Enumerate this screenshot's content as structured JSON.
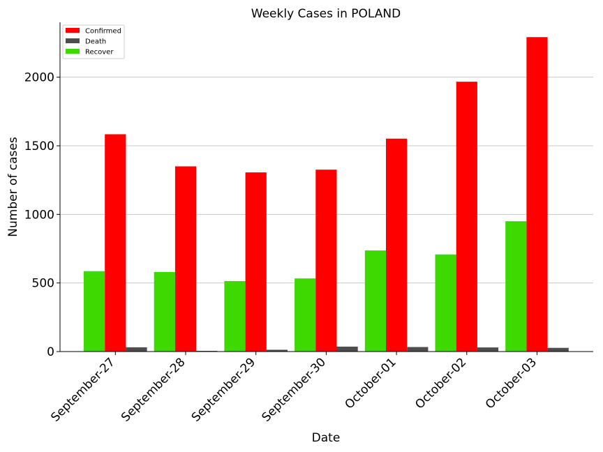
{
  "chart_data": {
    "type": "bar",
    "title": "Weekly Cases in POLAND",
    "xlabel": "Date",
    "ylabel": "Number of cases",
    "categories": [
      "September-27",
      "September-28",
      "September-29",
      "September-30",
      "October-01",
      "October-02",
      "October-03"
    ],
    "series": [
      {
        "name": "Recover",
        "color": "#3dd900",
        "values": [
          586,
          580,
          514,
          533,
          737,
          708,
          950
        ]
      },
      {
        "name": "Confirmed",
        "color": "#ff0000",
        "values": [
          1584,
          1350,
          1306,
          1326,
          1552,
          1967,
          2292
        ]
      },
      {
        "name": "Death",
        "color": "#4d4d4d",
        "values": [
          31,
          5,
          13,
          36,
          33,
          30,
          27
        ]
      }
    ],
    "legend_order": [
      "Confirmed",
      "Death",
      "Recover"
    ],
    "ylim": [
      0,
      2400
    ],
    "yticks": [
      0,
      500,
      1000,
      1500,
      2000
    ],
    "grid": "y",
    "legend_position": "top-left"
  }
}
